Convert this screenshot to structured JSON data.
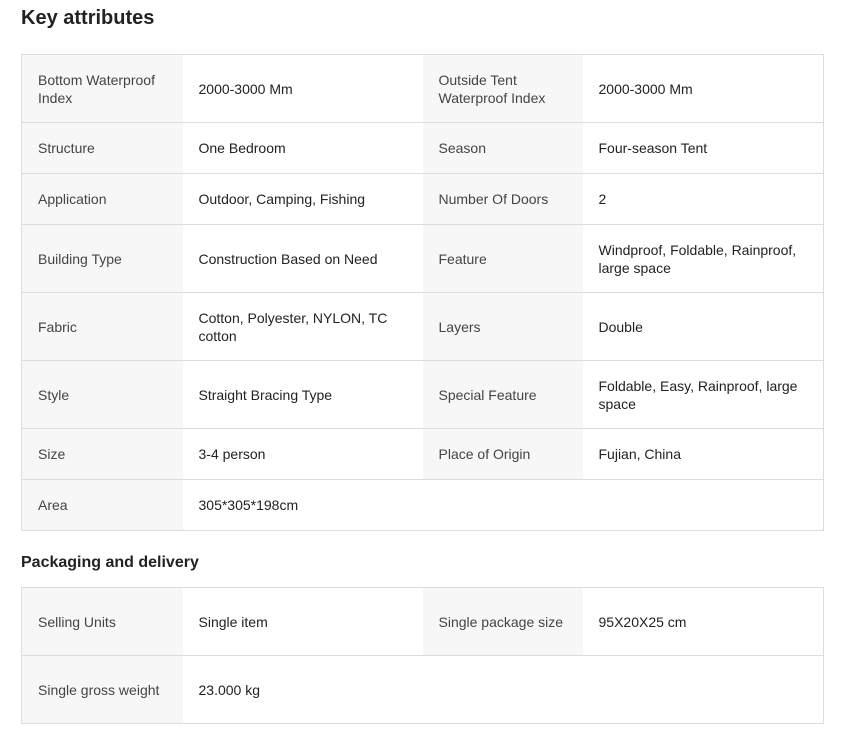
{
  "key_attributes": {
    "title": "Key attributes",
    "rows": [
      [
        [
          "Bottom Waterproof Index",
          "2000-3000 Mm"
        ],
        [
          "Outside Tent Waterproof Index",
          "2000-3000 Mm"
        ]
      ],
      [
        [
          "Structure",
          "One Bedroom"
        ],
        [
          "Season",
          "Four-season Tent"
        ]
      ],
      [
        [
          "Application",
          "Outdoor, Camping, Fishing"
        ],
        [
          "Number Of Doors",
          "2"
        ]
      ],
      [
        [
          "Building Type",
          "Construction Based on Need"
        ],
        [
          "Feature",
          "Windproof, Foldable, Rainproof, large space"
        ]
      ],
      [
        [
          "Fabric",
          "Cotton, Polyester, NYLON, TC cotton"
        ],
        [
          "Layers",
          "Double"
        ]
      ],
      [
        [
          "Style",
          "Straight Bracing Type"
        ],
        [
          "Special Feature",
          "Foldable, Easy, Rainproof, large space"
        ]
      ],
      [
        [
          "Size",
          "3-4 person"
        ],
        [
          "Place of Origin",
          "Fujian, China"
        ]
      ],
      [
        [
          "Area",
          "305*305*198cm"
        ]
      ]
    ]
  },
  "packaging": {
    "title": "Packaging and delivery",
    "rows": [
      [
        [
          "Selling Units",
          "Single item"
        ],
        [
          "Single package size",
          "95X20X25 cm"
        ]
      ],
      [
        [
          "Single gross weight",
          "23.000 kg"
        ]
      ]
    ]
  }
}
